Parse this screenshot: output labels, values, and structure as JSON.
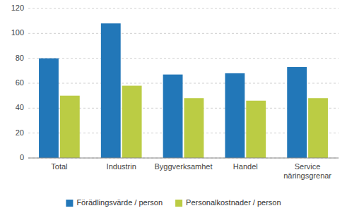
{
  "chart_data": {
    "type": "bar",
    "categories": [
      "Total",
      "Industrin",
      "Byggverksamhet",
      "Handel",
      "Service\nnäringsgrenar"
    ],
    "series": [
      {
        "name": "Förädlingsvärde / person",
        "color": "#2277B8",
        "values": [
          80,
          108,
          67,
          68,
          73
        ]
      },
      {
        "name": "Personalkostnader / person",
        "color": "#BBCC44",
        "values": [
          50,
          58,
          48,
          46,
          48
        ]
      }
    ],
    "ylim": [
      0,
      120
    ],
    "yticks": [
      0,
      20,
      40,
      60,
      80,
      100,
      120
    ],
    "grid": true,
    "legend": "bottom"
  }
}
